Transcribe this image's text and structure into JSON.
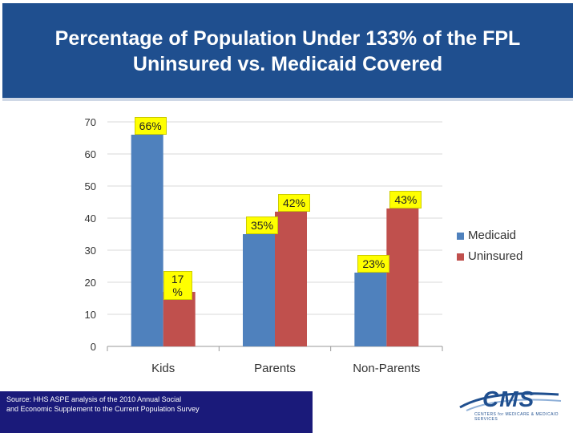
{
  "title_line1": "Percentage of Population Under 133% of the FPL",
  "title_line2": "Uninsured vs. Medicaid Covered",
  "source_line1": "Source:  HHS ASPE analysis of the 2010 Annual Social",
  "source_line2": "and Economic  Supplement to the Current Population Survey",
  "logo_text": "CMS",
  "logo_subtext": "CENTERS for MEDICARE & MEDICAID SERVICES",
  "colors": {
    "header": "#1f4f8f",
    "medicaid": "#4f81bd",
    "uninsured": "#c0504d",
    "label_bg": "#ffff00"
  },
  "chart_data": {
    "type": "bar",
    "title": "Percentage of Population Under 133% of the FPL Uninsured vs. Medicaid Covered",
    "xlabel": "",
    "ylabel": "",
    "categories": [
      "Kids",
      "Parents",
      "Non-Parents"
    ],
    "series": [
      {
        "name": "Medicaid",
        "values": [
          66,
          35,
          23
        ],
        "labels": [
          "66%",
          "35%",
          "23%"
        ]
      },
      {
        "name": "Uninsured",
        "values": [
          17,
          42,
          43
        ],
        "labels": [
          "17 %",
          "42%",
          "43%"
        ]
      }
    ],
    "ylim": [
      0,
      70
    ],
    "yticks": [
      0,
      10,
      20,
      30,
      40,
      50,
      60,
      70
    ],
    "grid": true,
    "legend": "right"
  }
}
